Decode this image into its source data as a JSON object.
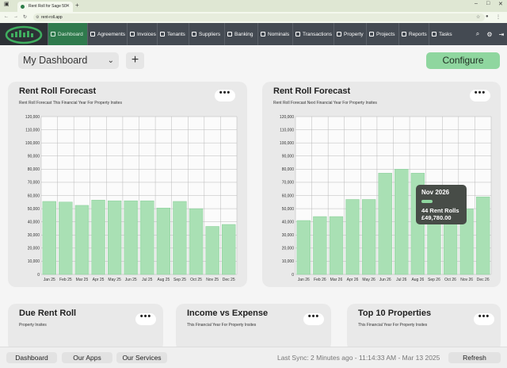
{
  "browser": {
    "tab_title": "Rent Roll for Sage 50",
    "url": "rent-roll.app"
  },
  "nav": {
    "items": [
      {
        "label": "Dashboard",
        "icon": "dashboard-icon"
      },
      {
        "label": "Agreements",
        "icon": "agreements-icon"
      },
      {
        "label": "Invoices",
        "icon": "invoices-icon"
      },
      {
        "label": "Tenants",
        "icon": "tenants-icon"
      },
      {
        "label": "Suppliers",
        "icon": "suppliers-icon"
      },
      {
        "label": "Banking",
        "icon": "banking-icon"
      },
      {
        "label": "Nominals",
        "icon": "nominals-icon"
      },
      {
        "label": "Transactions",
        "icon": "transactions-icon"
      },
      {
        "label": "Property",
        "icon": "property-icon"
      },
      {
        "label": "Projects",
        "icon": "projects-icon"
      },
      {
        "label": "Reports",
        "icon": "reports-icon"
      },
      {
        "label": "Tasks",
        "icon": "tasks-icon"
      }
    ]
  },
  "toolbar": {
    "dashboard_select": "My Dashboard",
    "add_label": "+",
    "configure_label": "Configure"
  },
  "cards": {
    "rr1": {
      "title": "Rent Roll Forecast",
      "subtitle": "Rent Roll Forecast This Financial Year For Property Insites"
    },
    "rr2": {
      "title": "Rent Roll Forecast",
      "subtitle": "Rent Roll Forecast Next Financial Year For Property Insites"
    },
    "due": {
      "title": "Due Rent Roll",
      "subtitle": "Property Insites"
    },
    "income": {
      "title": "Income vs Expense",
      "subtitle": "This Financial Year For Property Insites"
    },
    "top10": {
      "title": "Top 10 Properties",
      "subtitle": "This Financial Year For Property Insites"
    },
    "menu_label": "•••"
  },
  "chart_data": [
    {
      "type": "bar",
      "title": "Rent Roll Forecast",
      "categories": [
        "Jan 25",
        "Feb 25",
        "Mar 25",
        "Apr 25",
        "May 25",
        "Jun 25",
        "Jul 25",
        "Aug 25",
        "Sep 25",
        "Oct 25",
        "Nov 25",
        "Dec 25"
      ],
      "values": [
        55500,
        55000,
        52500,
        56500,
        56000,
        56000,
        56000,
        50500,
        55500,
        50000,
        36500,
        38000
      ],
      "ylim": [
        0,
        120000
      ],
      "yticks": [
        "0",
        "10,000",
        "20,000",
        "30,000",
        "40,000",
        "50,000",
        "60,000",
        "70,000",
        "80,000",
        "90,000",
        "100,000",
        "110,000",
        "120,000"
      ],
      "grid": true,
      "color": "#a9e0b4"
    },
    {
      "type": "bar",
      "title": "Rent Roll Forecast",
      "categories": [
        "Jan 26",
        "Feb 26",
        "Mar 26",
        "Apr 26",
        "May 26",
        "Jun 26",
        "Jul 26",
        "Aug 26",
        "Sep 26",
        "Oct 26",
        "Nov 26",
        "Dec 26"
      ],
      "values": [
        41000,
        44000,
        44000,
        57000,
        57000,
        77000,
        80000,
        77000,
        49000,
        49000,
        49780,
        59000
      ],
      "ylim": [
        0,
        120000
      ],
      "yticks": [
        "0",
        "10,000",
        "20,000",
        "30,000",
        "40,000",
        "50,000",
        "60,000",
        "70,000",
        "80,000",
        "90,000",
        "100,000",
        "110,000",
        "120,000"
      ],
      "grid": true,
      "color": "#a9e0b4",
      "tooltip": {
        "title": "Nov 2026",
        "line1": "44 Rent Rolls",
        "line2": "£49,780.00"
      }
    }
  ],
  "footer": {
    "dashboard": "Dashboard",
    "apps": "Our Apps",
    "services": "Our Services",
    "sync": "Last Sync: 2 Minutes ago - 11:14:33 AM - Mar 13 2025",
    "refresh": "Refresh"
  }
}
